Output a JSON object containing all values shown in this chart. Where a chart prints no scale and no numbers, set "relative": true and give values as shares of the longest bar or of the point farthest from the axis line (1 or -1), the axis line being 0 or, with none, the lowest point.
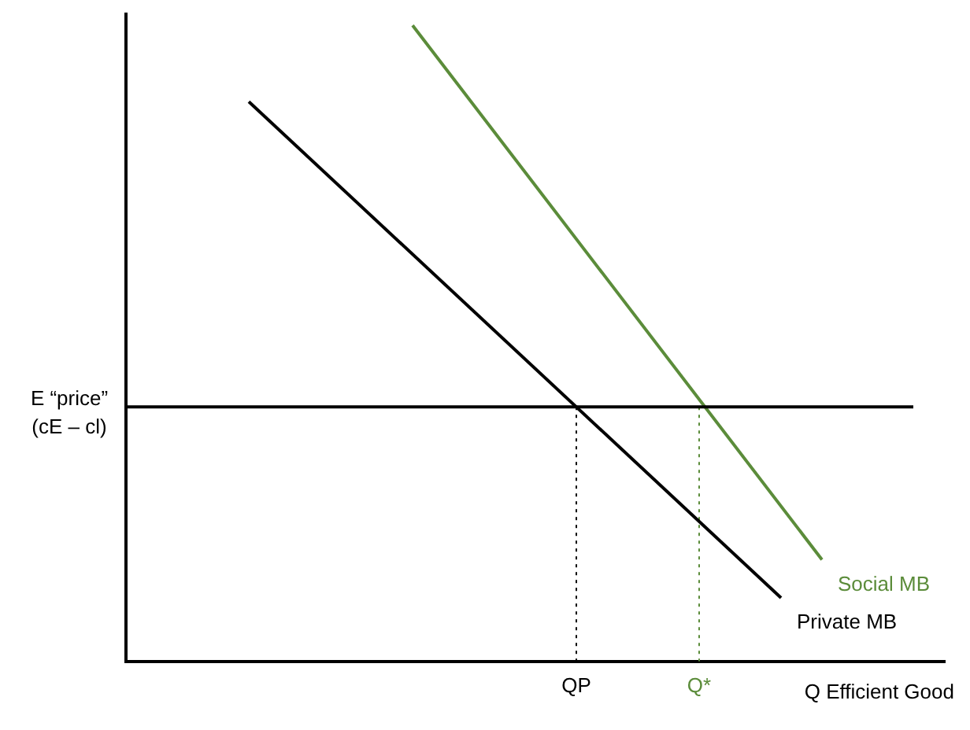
{
  "chart_data": {
    "type": "line",
    "relative": true,
    "xlabel": "Q Efficient Good",
    "categories": [
      null,
      null,
      null,
      null,
      null,
      null,
      null,
      null,
      null,
      null,
      null,
      "QP",
      null,
      null,
      "Q*",
      null,
      null,
      null,
      null,
      null,
      null
    ],
    "grid": false,
    "legend": false,
    "marker": "none",
    "ref_lines": [
      {
        "axis": "y",
        "value": 0.4,
        "label": "E “price” (cE – cl)",
        "color": "#000000",
        "line_style": "solid"
      }
    ],
    "series": [
      {
        "name": "Social MB",
        "color": "#5b8c3a",
        "values": [
          null,
          null,
          null,
          null,
          null,
          null,
          null,
          1,
          null,
          null,
          null,
          null,
          null,
          null,
          null,
          null,
          null,
          0.16,
          null,
          null,
          null
        ]
      },
      {
        "name": "Private MB",
        "color": "#000000",
        "values": [
          null,
          null,
          null,
          0.88,
          null,
          null,
          null,
          null,
          null,
          null,
          null,
          null,
          null,
          null,
          null,
          null,
          0.1,
          null,
          null,
          null,
          null
        ]
      },
      {
        "color": "#000000",
        "x": [
          "QP",
          "QP"
        ],
        "values": [
          0.4,
          0
        ],
        "line_style": "dotted"
      },
      {
        "color": "#5b8c3a",
        "x": [
          "Q*",
          "Q*"
        ],
        "values": [
          0.4,
          0
        ],
        "line_style": "dotted"
      }
    ]
  }
}
